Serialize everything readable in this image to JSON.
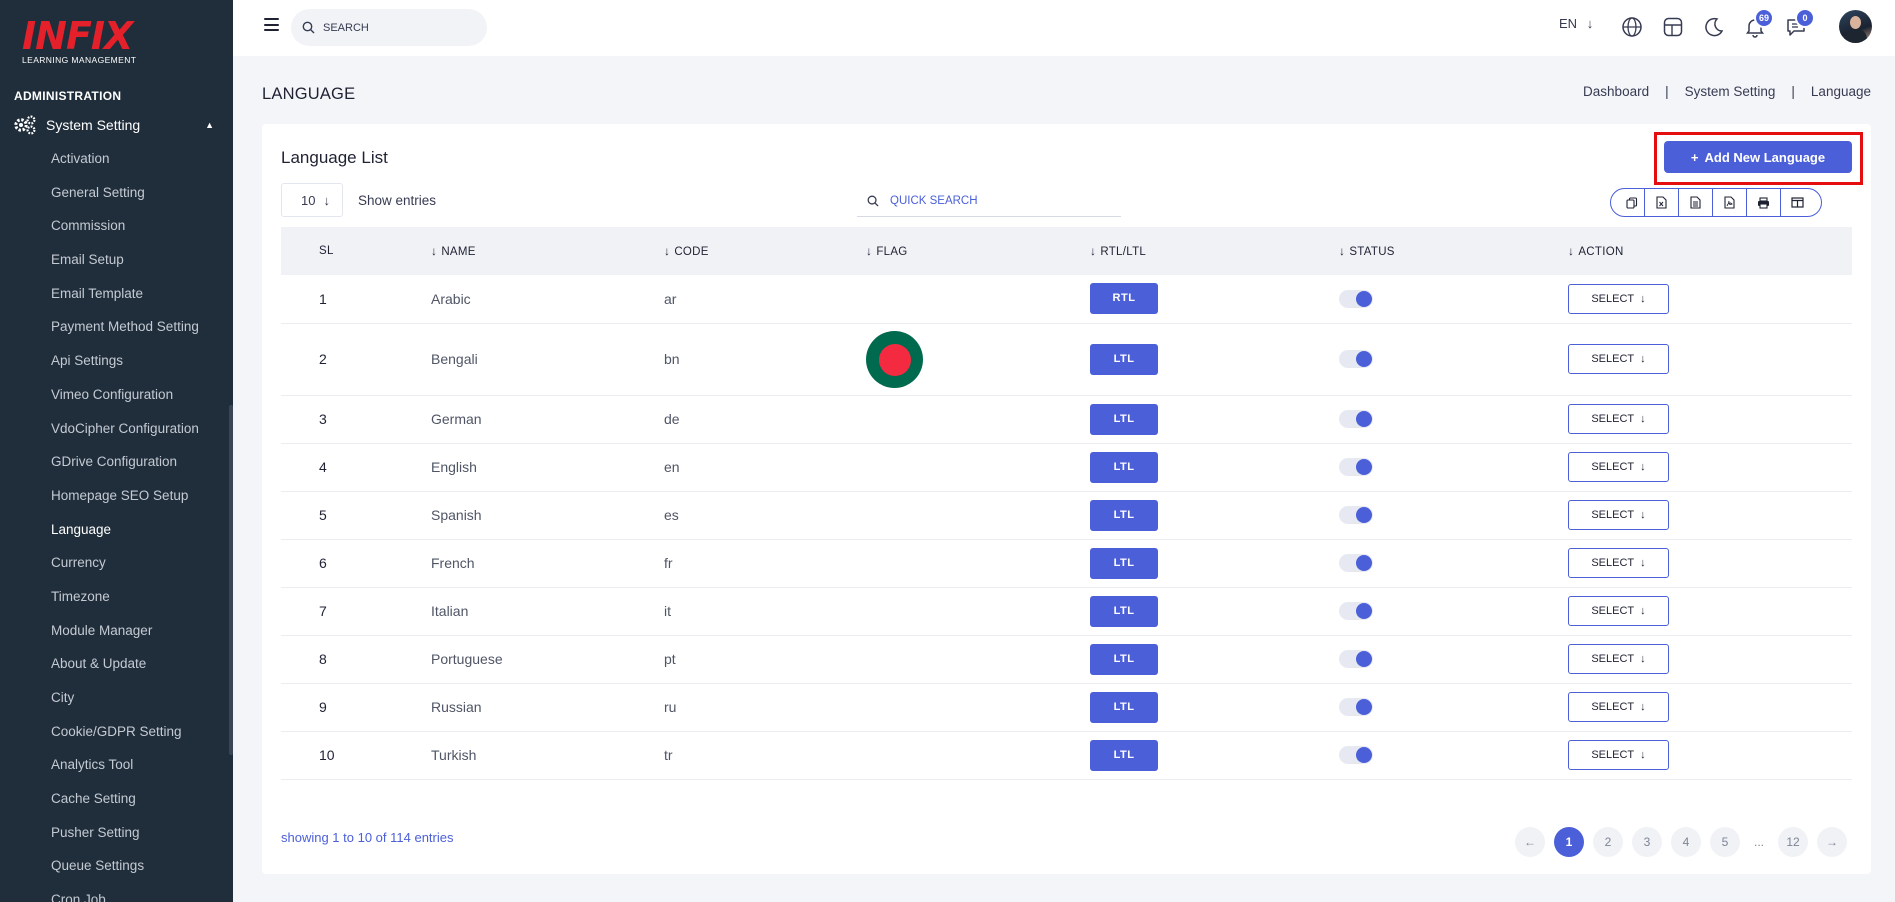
{
  "sidebar": {
    "logo_brand": "INFIX",
    "logo_sub": "LEARNING MANAGEMENT",
    "section_heading": "ADMINISTRATION",
    "parent_label": "System Setting",
    "items": [
      {
        "label": "Activation"
      },
      {
        "label": "General Setting"
      },
      {
        "label": "Commission"
      },
      {
        "label": "Email Setup"
      },
      {
        "label": "Email Template"
      },
      {
        "label": "Payment Method Setting"
      },
      {
        "label": "Api Settings"
      },
      {
        "label": "Vimeo Configuration"
      },
      {
        "label": "VdoCipher Configuration"
      },
      {
        "label": "GDrive Configuration"
      },
      {
        "label": "Homepage SEO Setup"
      },
      {
        "label": "Language"
      },
      {
        "label": "Currency"
      },
      {
        "label": "Timezone"
      },
      {
        "label": "Module Manager"
      },
      {
        "label": "About & Update"
      },
      {
        "label": "City"
      },
      {
        "label": "Cookie/GDPR Setting"
      },
      {
        "label": "Analytics Tool"
      },
      {
        "label": "Cache Setting"
      },
      {
        "label": "Pusher Setting"
      },
      {
        "label": "Queue Settings"
      },
      {
        "label": "Cron Job"
      }
    ],
    "active_item": "Language"
  },
  "topbar": {
    "search_placeholder": "SEARCH",
    "language": "EN",
    "notifications_count": "69",
    "messages_count": "0"
  },
  "page": {
    "title": "LANGUAGE",
    "breadcrumb": [
      "Dashboard",
      "System Setting",
      "Language"
    ]
  },
  "card": {
    "title": "Language List",
    "add_button_label": "Add New Language",
    "entries_value": "10",
    "entries_label": "Show entries",
    "quick_search_placeholder": "QUICK SEARCH"
  },
  "table": {
    "headers": {
      "sl": "SL",
      "name": "NAME",
      "code": "CODE",
      "flag": "FLAG",
      "dir": "RTL/LTL",
      "status": "STATUS",
      "action": "ACTION"
    },
    "select_label": "SELECT",
    "rows": [
      {
        "sl": "1",
        "name": "Arabic",
        "code": "ar",
        "dir": "RTL",
        "has_flag": false,
        "status": true
      },
      {
        "sl": "2",
        "name": "Bengali",
        "code": "bn",
        "dir": "LTL",
        "has_flag": true,
        "status": true
      },
      {
        "sl": "3",
        "name": "German",
        "code": "de",
        "dir": "LTL",
        "has_flag": false,
        "status": true
      },
      {
        "sl": "4",
        "name": "English",
        "code": "en",
        "dir": "LTL",
        "has_flag": false,
        "status": true
      },
      {
        "sl": "5",
        "name": "Spanish",
        "code": "es",
        "dir": "LTL",
        "has_flag": false,
        "status": true
      },
      {
        "sl": "6",
        "name": "French",
        "code": "fr",
        "dir": "LTL",
        "has_flag": false,
        "status": true
      },
      {
        "sl": "7",
        "name": "Italian",
        "code": "it",
        "dir": "LTL",
        "has_flag": false,
        "status": true
      },
      {
        "sl": "8",
        "name": "Portuguese",
        "code": "pt",
        "dir": "LTL",
        "has_flag": false,
        "status": true
      },
      {
        "sl": "9",
        "name": "Russian",
        "code": "ru",
        "dir": "LTL",
        "has_flag": false,
        "status": true
      },
      {
        "sl": "10",
        "name": "Turkish",
        "code": "tr",
        "dir": "LTL",
        "has_flag": false,
        "status": true
      }
    ]
  },
  "footer": {
    "showing_text": "showing 1 to 10 of 114 entries",
    "pages": [
      "1",
      "2",
      "3",
      "4",
      "5",
      "...",
      "12"
    ],
    "current_page": "1"
  },
  "colors": {
    "sidebar_bg": "#202e3b",
    "accent": "#4b5fd8",
    "logo_red": "#e4212b",
    "highlight_border": "#e40e0e"
  }
}
